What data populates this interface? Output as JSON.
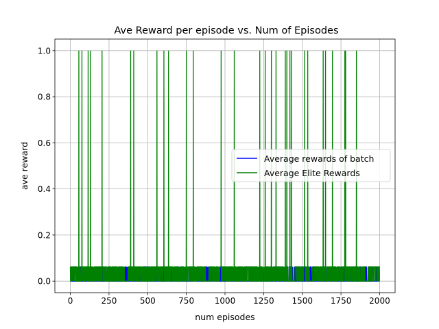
{
  "chart_data": {
    "type": "line",
    "title": "Ave Reward per episode vs. Num of Episodes",
    "xlabel": "num episodes",
    "ylabel": "ave reward",
    "xlim": [
      -100,
      2100
    ],
    "ylim": [
      -0.05,
      1.05
    ],
    "xticks": [
      0,
      250,
      500,
      750,
      1000,
      1250,
      1500,
      1750,
      2000
    ],
    "yticks": [
      0.0,
      0.2,
      0.4,
      0.6,
      0.8,
      1.0
    ],
    "xtick_labels": [
      "0",
      "250",
      "500",
      "750",
      "1000",
      "1250",
      "1500",
      "1750",
      "2000"
    ],
    "ytick_labels": [
      "0.0",
      "0.2",
      "0.4",
      "0.6",
      "0.8",
      "1.0"
    ],
    "grid": true,
    "legend_position": "center-right",
    "n_episodes": 2000,
    "series": [
      {
        "name": "Average rewards of batch",
        "color": "#0000ff",
        "baseline": 0.0,
        "low_values": [
          0.0,
          0.0625
        ],
        "description_values": "batch average mostly 0, occasionally 0.0625"
      },
      {
        "name": "Average Elite Rewards",
        "color": "#008000",
        "baseline": 0.0,
        "low_values": [
          0.0,
          0.0625
        ],
        "spike_value": 1.0,
        "spike_episodes": [
          55,
          75,
          115,
          130,
          205,
          390,
          410,
          560,
          605,
          635,
          750,
          795,
          975,
          1060,
          1225,
          1260,
          1300,
          1330,
          1390,
          1400,
          1420,
          1430,
          1515,
          1535,
          1635,
          1650,
          1695,
          1775,
          1780,
          1850
        ]
      }
    ]
  }
}
